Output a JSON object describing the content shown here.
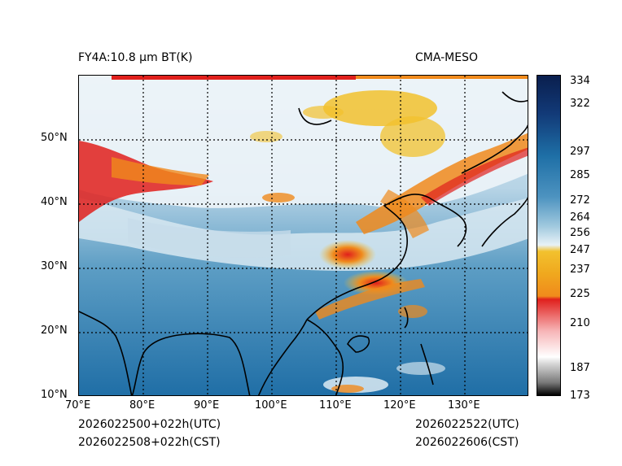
{
  "header": {
    "title_left": "FY4A:10.8 µm BT(K)",
    "title_right": "CMA-MESO"
  },
  "axes": {
    "lon_labels": [
      "70°E",
      "80°E",
      "90°E",
      "100°E",
      "110°E",
      "120°E",
      "130°E"
    ],
    "lat_labels": [
      "10°N",
      "20°N",
      "30°N",
      "40°N",
      "50°N"
    ]
  },
  "colorbar": {
    "ticks": [
      "334",
      "322",
      "297",
      "285",
      "272",
      "264",
      "256",
      "247",
      "237",
      "225",
      "210",
      "187",
      "173"
    ],
    "colors": {
      "dark_navy": "#0a1f4e",
      "steel_blue": "#1e6fa6",
      "light_blue": "#9fc8de",
      "pale": "#e8f2f7",
      "yellow": "#f2c12e",
      "orange": "#f08a1c",
      "red": "#e0201c",
      "pink": "#f7b6b8",
      "gray": "#7a7a7a",
      "black": "#000000"
    }
  },
  "footer": {
    "left_utc": "2026022500+022h(UTC)",
    "left_cst": "2026022508+022h(CST)",
    "right_utc": "2026022522(UTC)",
    "right_cst": "2026022606(CST)"
  }
}
